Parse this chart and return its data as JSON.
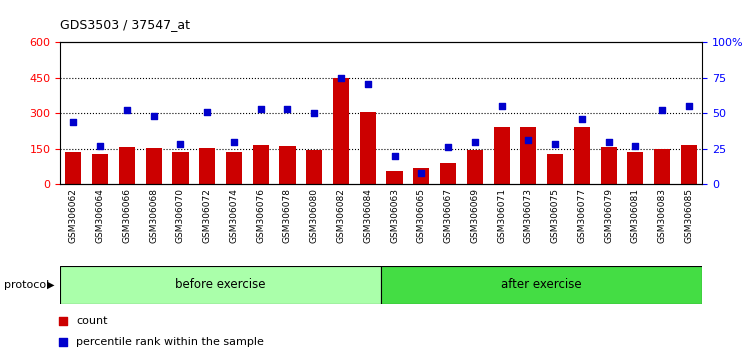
{
  "title": "GDS3503 / 37547_at",
  "samples": [
    "GSM306062",
    "GSM306064",
    "GSM306066",
    "GSM306068",
    "GSM306070",
    "GSM306072",
    "GSM306074",
    "GSM306076",
    "GSM306078",
    "GSM306080",
    "GSM306082",
    "GSM306084",
    "GSM306063",
    "GSM306065",
    "GSM306067",
    "GSM306069",
    "GSM306071",
    "GSM306073",
    "GSM306075",
    "GSM306077",
    "GSM306079",
    "GSM306081",
    "GSM306083",
    "GSM306085"
  ],
  "count_values": [
    135,
    128,
    158,
    155,
    135,
    152,
    137,
    165,
    160,
    143,
    450,
    305,
    55,
    70,
    90,
    143,
    243,
    243,
    127,
    243,
    158,
    137,
    148,
    167
  ],
  "percentile_values": [
    44,
    27,
    52,
    48,
    28,
    51,
    30,
    53,
    53,
    50,
    75,
    71,
    20,
    8,
    26,
    30,
    55,
    31,
    28,
    46,
    30,
    27,
    52,
    55
  ],
  "bar_color": "#cc0000",
  "dot_color": "#0000cc",
  "left_ylim": [
    0,
    600
  ],
  "right_ylim": [
    0,
    100
  ],
  "left_yticks": [
    0,
    150,
    300,
    450,
    600
  ],
  "right_yticks": [
    0,
    25,
    50,
    75,
    100
  ],
  "right_yticklabels": [
    "0",
    "25",
    "50",
    "75",
    "100%"
  ],
  "grid_lines": [
    150,
    300,
    450
  ],
  "before_exercise_count": 12,
  "protocol_label": "protocol",
  "before_label": "before exercise",
  "after_label": "after exercise",
  "before_color": "#aaffaa",
  "after_color": "#44dd44",
  "legend_count_label": "count",
  "legend_percentile_label": "percentile rank within the sample",
  "tick_area_bg": "#cccccc"
}
